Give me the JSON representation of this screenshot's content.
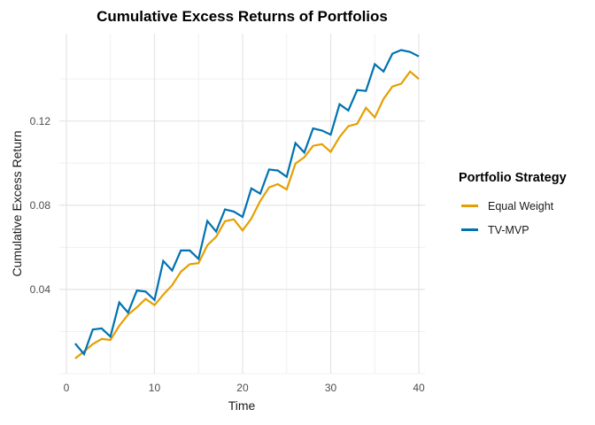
{
  "title": "Cumulative Excess Returns of Portfolios",
  "axes": {
    "x_title": "Time",
    "y_title": "Cumulative Excess Return"
  },
  "legend": {
    "title": "Portfolio Strategy",
    "items": [
      {
        "label": "Equal Weight",
        "color": "#E69F00"
      },
      {
        "label": "TV-MVP",
        "color": "#0072B2"
      }
    ]
  },
  "chart_data": {
    "type": "line",
    "title": "Cumulative Excess Returns of Portfolios",
    "xlabel": "Time",
    "ylabel": "Cumulative Excess Return",
    "grid": true,
    "legend_position": "right",
    "x_domain": [
      -0.8,
      40.7
    ],
    "y_domain": [
      0,
      0.1615
    ],
    "x_ticks": {
      "values": [
        0,
        10,
        20,
        30,
        40
      ],
      "labels": [
        "0",
        "10",
        "20",
        "30",
        "40"
      ]
    },
    "y_ticks": {
      "values": [
        0.04,
        0.08,
        0.12
      ],
      "labels": [
        "0.04",
        "0.08",
        "0.12"
      ]
    },
    "x_minor": [
      5,
      15,
      25,
      35
    ],
    "y_minor": [
      0.0,
      0.02,
      0.06,
      0.1,
      0.14
    ],
    "x": [
      1,
      2,
      3,
      4,
      5,
      6,
      7,
      8,
      9,
      10,
      11,
      12,
      13,
      14,
      15,
      16,
      17,
      18,
      19,
      20,
      21,
      22,
      23,
      24,
      25,
      26,
      27,
      28,
      29,
      30,
      31,
      32,
      33,
      34,
      35,
      36,
      37,
      38,
      39,
      40
    ],
    "series": [
      {
        "name": "Equal Weight",
        "color": "#E69F00",
        "values": [
          0.0072,
          0.0105,
          0.014,
          0.0165,
          0.016,
          0.0227,
          0.028,
          0.0315,
          0.0355,
          0.0325,
          0.0375,
          0.042,
          0.0484,
          0.052,
          0.0525,
          0.061,
          0.065,
          0.0724,
          0.0733,
          0.068,
          0.0737,
          0.082,
          0.0885,
          0.09,
          0.0875,
          0.0998,
          0.1028,
          0.1082,
          0.109,
          0.1053,
          0.1124,
          0.1175,
          0.1187,
          0.1263,
          0.1217,
          0.1305,
          0.1364,
          0.1377,
          0.1435,
          0.14
        ]
      },
      {
        "name": "TV-MVP",
        "color": "#0072B2",
        "values": [
          0.0143,
          0.0093,
          0.021,
          0.0215,
          0.0176,
          0.0338,
          0.029,
          0.0395,
          0.039,
          0.035,
          0.0535,
          0.049,
          0.0585,
          0.0585,
          0.0545,
          0.0725,
          0.0675,
          0.078,
          0.077,
          0.0745,
          0.088,
          0.0855,
          0.097,
          0.0965,
          0.0935,
          0.1095,
          0.105,
          0.1165,
          0.1155,
          0.1135,
          0.128,
          0.125,
          0.1347,
          0.1343,
          0.147,
          0.1435,
          0.152,
          0.1537,
          0.1528,
          0.1507
        ]
      }
    ]
  }
}
